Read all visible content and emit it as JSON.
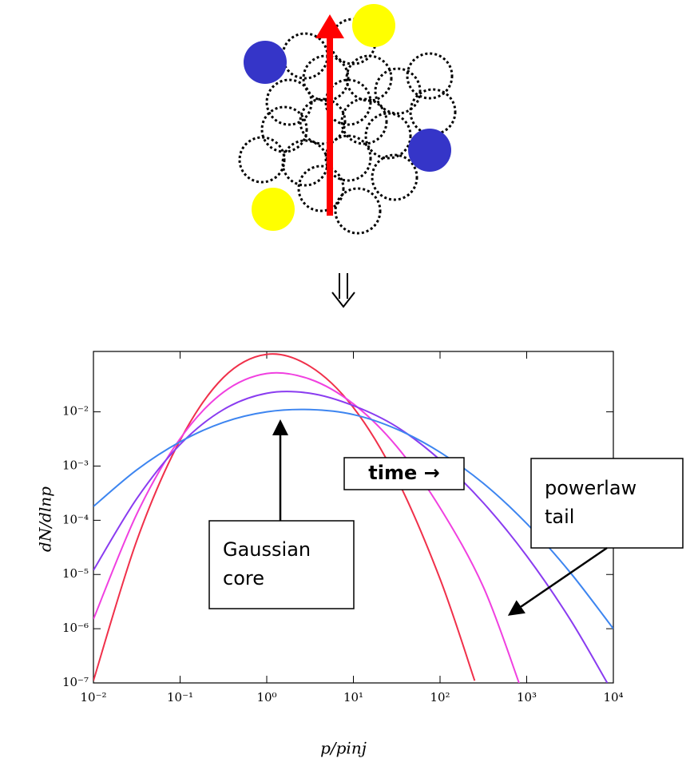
{
  "chart_data": {
    "type": "line",
    "xlabel": "p/pinj",
    "ylabel": "dN/dlnp",
    "xscale": "log",
    "yscale": "log",
    "xlim": [
      0.01,
      10000
    ],
    "ylim": [
      1e-07,
      0.13
    ],
    "xticks": [
      {
        "value": 0.01,
        "label": "10⁻²"
      },
      {
        "value": 0.1,
        "label": "10⁻¹"
      },
      {
        "value": 1,
        "label": "10⁰"
      },
      {
        "value": 10,
        "label": "10¹"
      },
      {
        "value": 100,
        "label": "10²"
      },
      {
        "value": 1000,
        "label": "10³"
      },
      {
        "value": 10000,
        "label": "10⁴"
      }
    ],
    "yticks": [
      {
        "value": 1e-07,
        "label": "10⁻⁷"
      },
      {
        "value": 1e-06,
        "label": "10⁻⁶"
      },
      {
        "value": 1e-05,
        "label": "10⁻⁵"
      },
      {
        "value": 0.0001,
        "label": "10⁻⁴"
      },
      {
        "value": 0.001,
        "label": "10⁻³"
      },
      {
        "value": 0.01,
        "label": "10⁻²"
      }
    ],
    "series": [
      {
        "color": "#f0304a",
        "x": [
          0.01,
          0.0316,
          0.1,
          0.316,
          1,
          3.16,
          10,
          31.6,
          100,
          251
        ],
        "values": [
          1.1e-07,
          4.2e-05,
          0.003,
          0.043,
          0.115,
          0.069,
          0.012,
          0.00059,
          8.3e-06,
          1.1e-07
        ]
      },
      {
        "color": "#f040e0",
        "x": [
          0.01,
          0.0316,
          0.1,
          0.316,
          1,
          3.16,
          10,
          31.6,
          100,
          316,
          830
        ],
        "values": [
          1.5e-06,
          0.00013,
          0.0032,
          0.023,
          0.051,
          0.04,
          0.014,
          0.0023,
          0.00017,
          5.9e-06,
          9.3e-08
        ]
      },
      {
        "color": "#8a3cf0",
        "x": [
          0.01,
          0.0316,
          0.1,
          0.316,
          1,
          3.16,
          10,
          31.6,
          100,
          316,
          1000,
          3162,
          8510
        ],
        "values": [
          1.2e-05,
          0.00025,
          0.0025,
          0.011,
          0.022,
          0.022,
          0.013,
          0.0053,
          0.0013,
          0.00021,
          2.2e-05,
          1.5e-06,
          1e-07
        ]
      },
      {
        "color": "#3d85f0",
        "x": [
          0.01,
          0.0316,
          0.1,
          0.316,
          1,
          3.16,
          10,
          31.6,
          100,
          316,
          1000,
          3162,
          10000
        ],
        "values": [
          0.00018,
          0.00085,
          0.0028,
          0.0064,
          0.01,
          0.011,
          0.0089,
          0.0048,
          0.0018,
          0.00048,
          8.7e-05,
          1.1e-05,
          1e-06
        ]
      }
    ],
    "annotations": [
      {
        "lines": [
          "time →"
        ]
      },
      {
        "lines": [
          "Gaussian",
          "core"
        ]
      },
      {
        "lines": [
          "powerlaw",
          "tail"
        ]
      }
    ]
  }
}
